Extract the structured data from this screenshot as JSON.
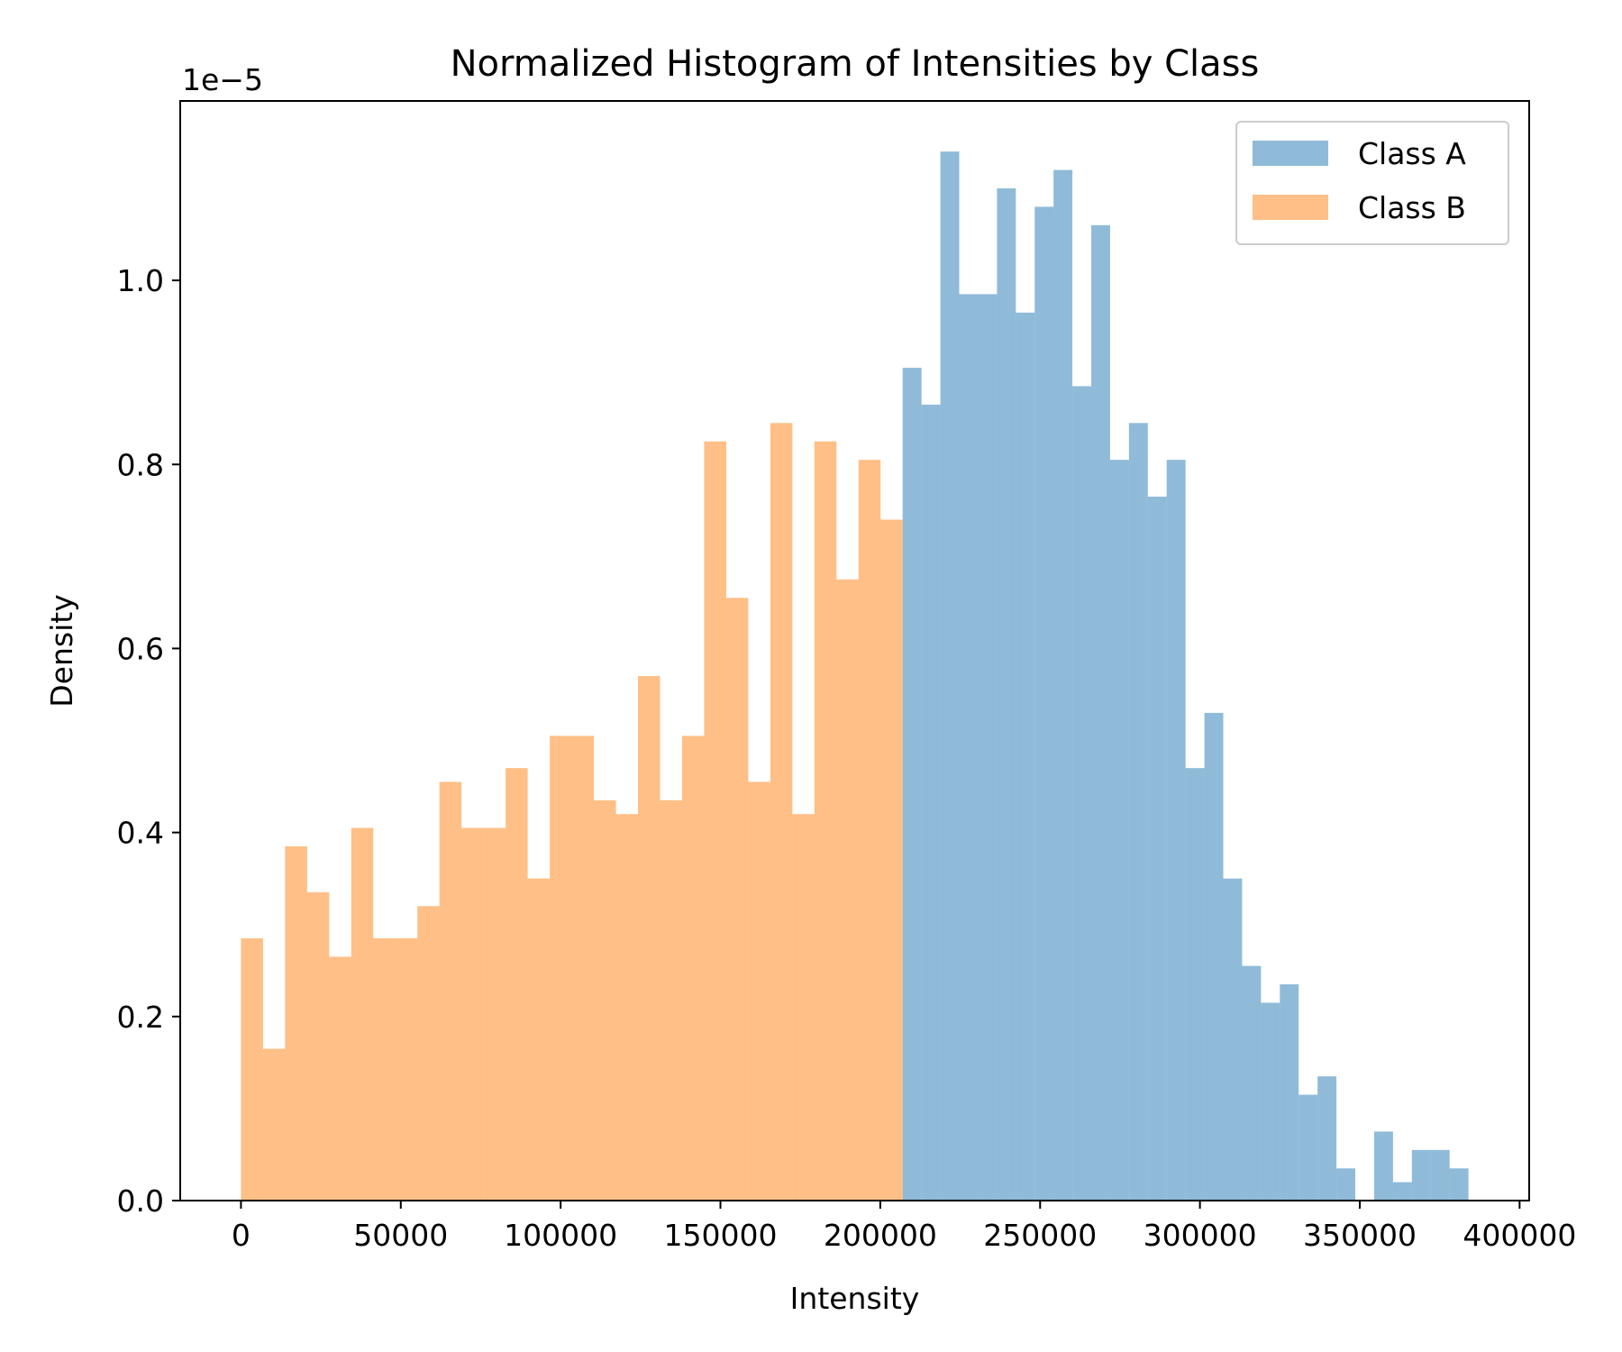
{
  "chart_data": {
    "type": "bar",
    "title": "Normalized Histogram of Intensities by Class",
    "xlabel": "Intensity",
    "ylabel": "Density",
    "y_offset_label": "1e−5",
    "xlim": [
      -19000,
      403000
    ],
    "ylim": [
      0,
      1.195
    ],
    "x_ticks": [
      0,
      50000,
      100000,
      150000,
      200000,
      250000,
      300000,
      350000,
      400000
    ],
    "x_tick_labels": [
      "0",
      "50000",
      "100000",
      "150000",
      "200000",
      "250000",
      "300000",
      "350000",
      "400000"
    ],
    "y_ticks": [
      0.0,
      0.2,
      0.4,
      0.6,
      0.8,
      1.0
    ],
    "y_tick_labels": [
      "0.0",
      "0.2",
      "0.4",
      "0.6",
      "0.8",
      "1.0"
    ],
    "grid": false,
    "legend_position": "top-right",
    "series": [
      {
        "name": "Class A",
        "color": "#1f77b4",
        "alpha": 0.5,
        "bin_start": 207000,
        "bin_width": 5900,
        "values": [
          0.905,
          0.865,
          1.14,
          0.985,
          0.985,
          1.1,
          0.965,
          1.08,
          1.12,
          0.885,
          1.06,
          0.805,
          0.845,
          0.765,
          0.805,
          0.47,
          0.53,
          0.35,
          0.255,
          0.215,
          0.235,
          0.115,
          0.135,
          0.035,
          0.0,
          0.075,
          0.02,
          0.055,
          0.055,
          0.035
        ]
      },
      {
        "name": "Class B",
        "color": "#ff7f0e",
        "alpha": 0.5,
        "bin_start": 0,
        "bin_width": 6900,
        "values": [
          0.285,
          0.165,
          0.385,
          0.335,
          0.265,
          0.405,
          0.285,
          0.285,
          0.32,
          0.455,
          0.405,
          0.405,
          0.47,
          0.35,
          0.505,
          0.505,
          0.435,
          0.42,
          0.57,
          0.435,
          0.505,
          0.825,
          0.655,
          0.455,
          0.845,
          0.42,
          0.825,
          0.675,
          0.805,
          0.74
        ]
      }
    ]
  }
}
